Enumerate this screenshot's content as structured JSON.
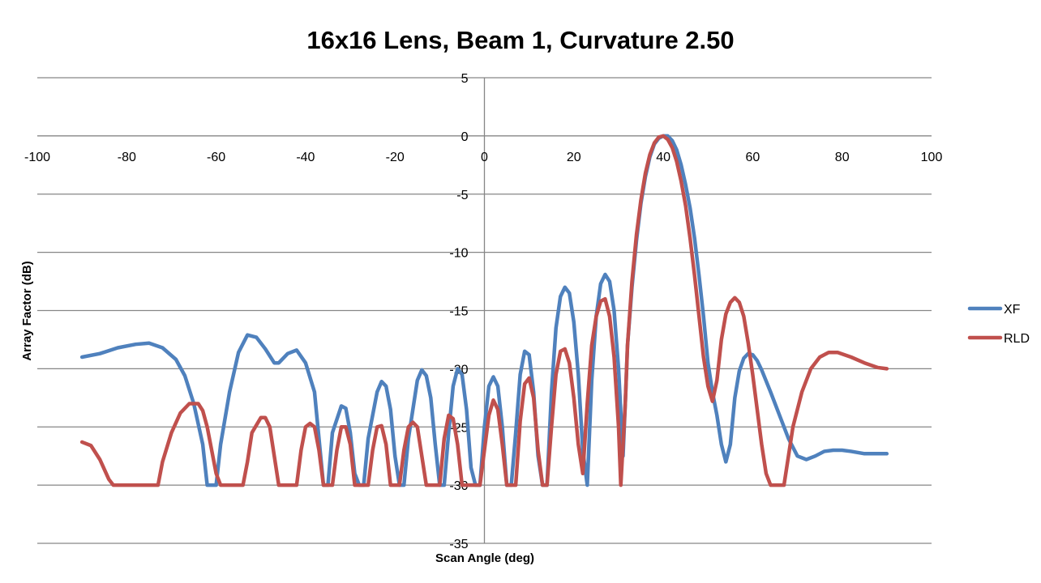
{
  "chart_data": {
    "type": "line",
    "title": "16x16 Lens, Beam 1, Curvature 2.50",
    "xlabel": "Scan Angle (deg)",
    "ylabel": "Array Factor (dB)",
    "xlim": [
      -100,
      100
    ],
    "ylim": [
      -35,
      5
    ],
    "xticks": [
      -100,
      -80,
      -60,
      -40,
      -20,
      0,
      20,
      40,
      60,
      80,
      100
    ],
    "yticks": [
      5,
      0,
      -5,
      -10,
      -15,
      -20,
      -25,
      -30,
      -35
    ],
    "grid": true,
    "legend_position": "right",
    "series": [
      {
        "name": "XF",
        "color": "#4f81bd",
        "points": [
          [
            -90,
            -19.0
          ],
          [
            -86,
            -18.7
          ],
          [
            -82,
            -18.2
          ],
          [
            -78,
            -17.9
          ],
          [
            -75,
            -17.8
          ],
          [
            -72,
            -18.2
          ],
          [
            -69,
            -19.2
          ],
          [
            -67,
            -20.6
          ],
          [
            -65,
            -23.0
          ],
          [
            -63,
            -26.5
          ],
          [
            -62,
            -30.0
          ],
          [
            -61,
            -30.0
          ],
          [
            -60,
            -30.0
          ],
          [
            -59,
            -26.5
          ],
          [
            -57,
            -22.0
          ],
          [
            -55,
            -18.6
          ],
          [
            -53,
            -17.1
          ],
          [
            -51,
            -17.3
          ],
          [
            -49,
            -18.3
          ],
          [
            -47,
            -19.5
          ],
          [
            -46,
            -19.5
          ],
          [
            -44,
            -18.7
          ],
          [
            -42,
            -18.4
          ],
          [
            -40,
            -19.5
          ],
          [
            -38,
            -22.0
          ],
          [
            -37,
            -26.0
          ],
          [
            -36,
            -30.0
          ],
          [
            -35,
            -30.0
          ],
          [
            -34,
            -25.5
          ],
          [
            -32,
            -23.2
          ],
          [
            -31,
            -23.4
          ],
          [
            -30,
            -25.5
          ],
          [
            -29,
            -29.0
          ],
          [
            -28,
            -30.0
          ],
          [
            -27,
            -30.0
          ],
          [
            -26,
            -26.0
          ],
          [
            -24,
            -22.0
          ],
          [
            -23,
            -21.1
          ],
          [
            -22,
            -21.5
          ],
          [
            -21,
            -23.5
          ],
          [
            -20,
            -27.5
          ],
          [
            -19,
            -30.0
          ],
          [
            -18,
            -30.0
          ],
          [
            -17,
            -26.0
          ],
          [
            -15,
            -21.0
          ],
          [
            -14,
            -20.1
          ],
          [
            -13,
            -20.6
          ],
          [
            -12,
            -22.5
          ],
          [
            -11,
            -26.5
          ],
          [
            -10,
            -30.0
          ],
          [
            -9,
            -30.0
          ],
          [
            -8,
            -25.5
          ],
          [
            -7,
            -21.5
          ],
          [
            -6,
            -20.0
          ],
          [
            -5,
            -20.5
          ],
          [
            -4,
            -23.5
          ],
          [
            -3,
            -28.5
          ],
          [
            -2,
            -30.0
          ],
          [
            -1,
            -30.0
          ],
          [
            0,
            -25.0
          ],
          [
            1,
            -21.5
          ],
          [
            2,
            -20.7
          ],
          [
            3,
            -21.5
          ],
          [
            4,
            -25.0
          ],
          [
            5,
            -30.0
          ],
          [
            6,
            -30.0
          ],
          [
            7,
            -25.5
          ],
          [
            8,
            -20.5
          ],
          [
            9,
            -18.5
          ],
          [
            10,
            -18.8
          ],
          [
            11,
            -22.0
          ],
          [
            12,
            -27.5
          ],
          [
            13,
            -30.0
          ],
          [
            14,
            -30.0
          ],
          [
            15,
            -22.0
          ],
          [
            16,
            -16.5
          ],
          [
            17,
            -13.8
          ],
          [
            18,
            -13.0
          ],
          [
            19,
            -13.5
          ],
          [
            20,
            -16.0
          ],
          [
            21,
            -20.5
          ],
          [
            22,
            -27.0
          ],
          [
            23,
            -30.0
          ],
          [
            24,
            -21.0
          ],
          [
            25,
            -15.5
          ],
          [
            26,
            -12.7
          ],
          [
            27,
            -11.9
          ],
          [
            28,
            -12.5
          ],
          [
            29,
            -15.0
          ],
          [
            30,
            -20.0
          ],
          [
            31,
            -27.5
          ],
          [
            31.5,
            -23.0
          ],
          [
            32,
            -18.0
          ],
          [
            33,
            -13.0
          ],
          [
            34,
            -9.0
          ],
          [
            35,
            -5.8
          ],
          [
            36,
            -3.5
          ],
          [
            37,
            -1.8
          ],
          [
            38,
            -0.7
          ],
          [
            39,
            -0.2
          ],
          [
            40,
            0.0
          ],
          [
            41,
            0.0
          ],
          [
            42,
            -0.4
          ],
          [
            43,
            -1.2
          ],
          [
            44,
            -2.5
          ],
          [
            45,
            -4.2
          ],
          [
            46,
            -6.2
          ],
          [
            47,
            -8.8
          ],
          [
            48,
            -12.0
          ],
          [
            49,
            -15.5
          ],
          [
            50,
            -19.5
          ],
          [
            51,
            -22.0
          ],
          [
            52,
            -24.0
          ],
          [
            53,
            -26.5
          ],
          [
            54,
            -28.0
          ],
          [
            55,
            -26.5
          ],
          [
            56,
            -22.5
          ],
          [
            57,
            -20.2
          ],
          [
            58,
            -19.1
          ],
          [
            59,
            -18.7
          ],
          [
            60,
            -18.8
          ],
          [
            61,
            -19.3
          ],
          [
            62,
            -20.1
          ],
          [
            64,
            -22.0
          ],
          [
            66,
            -24.0
          ],
          [
            68,
            -26.0
          ],
          [
            70,
            -27.5
          ],
          [
            72,
            -27.8
          ],
          [
            74,
            -27.5
          ],
          [
            76,
            -27.1
          ],
          [
            78,
            -27.0
          ],
          [
            80,
            -27.0
          ],
          [
            82,
            -27.1
          ],
          [
            85,
            -27.3
          ],
          [
            90,
            -27.3
          ]
        ]
      },
      {
        "name": "RLD",
        "color": "#c0504d",
        "points": [
          [
            -90,
            -26.3
          ],
          [
            -88,
            -26.6
          ],
          [
            -86,
            -27.8
          ],
          [
            -84,
            -29.5
          ],
          [
            -83,
            -30.0
          ],
          [
            -78,
            -30.0
          ],
          [
            -73,
            -30.0
          ],
          [
            -72,
            -28.0
          ],
          [
            -70,
            -25.5
          ],
          [
            -68,
            -23.8
          ],
          [
            -66,
            -23.0
          ],
          [
            -64,
            -23.0
          ],
          [
            -63,
            -23.6
          ],
          [
            -62,
            -25.0
          ],
          [
            -61,
            -27.0
          ],
          [
            -60,
            -29.0
          ],
          [
            -59,
            -30.0
          ],
          [
            -54,
            -30.0
          ],
          [
            -53,
            -28.0
          ],
          [
            -52,
            -25.5
          ],
          [
            -50,
            -24.2
          ],
          [
            -49,
            -24.2
          ],
          [
            -48,
            -25.0
          ],
          [
            -47,
            -27.5
          ],
          [
            -46,
            -30.0
          ],
          [
            -42,
            -30.0
          ],
          [
            -41,
            -27.0
          ],
          [
            -40,
            -25.0
          ],
          [
            -39,
            -24.7
          ],
          [
            -38,
            -25.0
          ],
          [
            -37,
            -27.0
          ],
          [
            -36,
            -30.0
          ],
          [
            -34,
            -30.0
          ],
          [
            -33,
            -27.0
          ],
          [
            -32,
            -25.0
          ],
          [
            -31,
            -25.0
          ],
          [
            -30,
            -26.5
          ],
          [
            -29,
            -30.0
          ],
          [
            -26,
            -30.0
          ],
          [
            -25,
            -27.0
          ],
          [
            -24,
            -25.0
          ],
          [
            -23,
            -24.9
          ],
          [
            -22,
            -26.5
          ],
          [
            -21,
            -30.0
          ],
          [
            -19,
            -30.0
          ],
          [
            -18,
            -27.0
          ],
          [
            -17,
            -25.0
          ],
          [
            -16,
            -24.6
          ],
          [
            -15,
            -25.0
          ],
          [
            -14,
            -27.5
          ],
          [
            -13,
            -30.0
          ],
          [
            -10,
            -30.0
          ],
          [
            -9,
            -26.0
          ],
          [
            -8,
            -24.0
          ],
          [
            -7,
            -24.3
          ],
          [
            -6,
            -26.5
          ],
          [
            -5,
            -30.0
          ],
          [
            -1,
            -30.0
          ],
          [
            0,
            -27.0
          ],
          [
            1,
            -24.0
          ],
          [
            2,
            -22.7
          ],
          [
            3,
            -23.5
          ],
          [
            4,
            -26.5
          ],
          [
            5,
            -30.0
          ],
          [
            7,
            -30.0
          ],
          [
            8,
            -24.5
          ],
          [
            9,
            -21.3
          ],
          [
            10,
            -20.8
          ],
          [
            11,
            -22.5
          ],
          [
            12,
            -27.0
          ],
          [
            13,
            -30.0
          ],
          [
            14,
            -30.0
          ],
          [
            15,
            -25.0
          ],
          [
            16,
            -20.5
          ],
          [
            17,
            -18.5
          ],
          [
            18,
            -18.3
          ],
          [
            19,
            -19.5
          ],
          [
            20,
            -22.5
          ],
          [
            21,
            -26.5
          ],
          [
            22,
            -29.0
          ],
          [
            23,
            -23.0
          ],
          [
            24,
            -18.0
          ],
          [
            25,
            -15.5
          ],
          [
            26,
            -14.2
          ],
          [
            27,
            -14.0
          ],
          [
            28,
            -15.5
          ],
          [
            29,
            -19.0
          ],
          [
            30,
            -25.0
          ],
          [
            30.5,
            -30.0
          ],
          [
            31.5,
            -23.0
          ],
          [
            32,
            -18.0
          ],
          [
            33,
            -12.5
          ],
          [
            34,
            -8.5
          ],
          [
            35,
            -5.5
          ],
          [
            36,
            -3.2
          ],
          [
            37,
            -1.6
          ],
          [
            38,
            -0.6
          ],
          [
            39,
            -0.1
          ],
          [
            40,
            0.0
          ],
          [
            41,
            -0.3
          ],
          [
            42,
            -1.0
          ],
          [
            43,
            -2.2
          ],
          [
            44,
            -3.9
          ],
          [
            45,
            -6.0
          ],
          [
            46,
            -8.8
          ],
          [
            47,
            -12.0
          ],
          [
            48,
            -15.5
          ],
          [
            49,
            -19.0
          ],
          [
            50,
            -21.5
          ],
          [
            51,
            -22.8
          ],
          [
            52,
            -21.0
          ],
          [
            53,
            -17.5
          ],
          [
            54,
            -15.3
          ],
          [
            55,
            -14.3
          ],
          [
            56,
            -13.9
          ],
          [
            57,
            -14.3
          ],
          [
            58,
            -15.5
          ],
          [
            59,
            -17.8
          ],
          [
            60,
            -20.5
          ],
          [
            61,
            -23.5
          ],
          [
            62,
            -26.5
          ],
          [
            63,
            -29.0
          ],
          [
            64,
            -30.0
          ],
          [
            67,
            -30.0
          ],
          [
            68,
            -27.5
          ],
          [
            69,
            -25.0
          ],
          [
            71,
            -22.0
          ],
          [
            73,
            -20.0
          ],
          [
            75,
            -19.0
          ],
          [
            77,
            -18.6
          ],
          [
            79,
            -18.6
          ],
          [
            82,
            -19.0
          ],
          [
            85,
            -19.5
          ],
          [
            88,
            -19.9
          ],
          [
            90,
            -20.0
          ]
        ]
      }
    ]
  }
}
